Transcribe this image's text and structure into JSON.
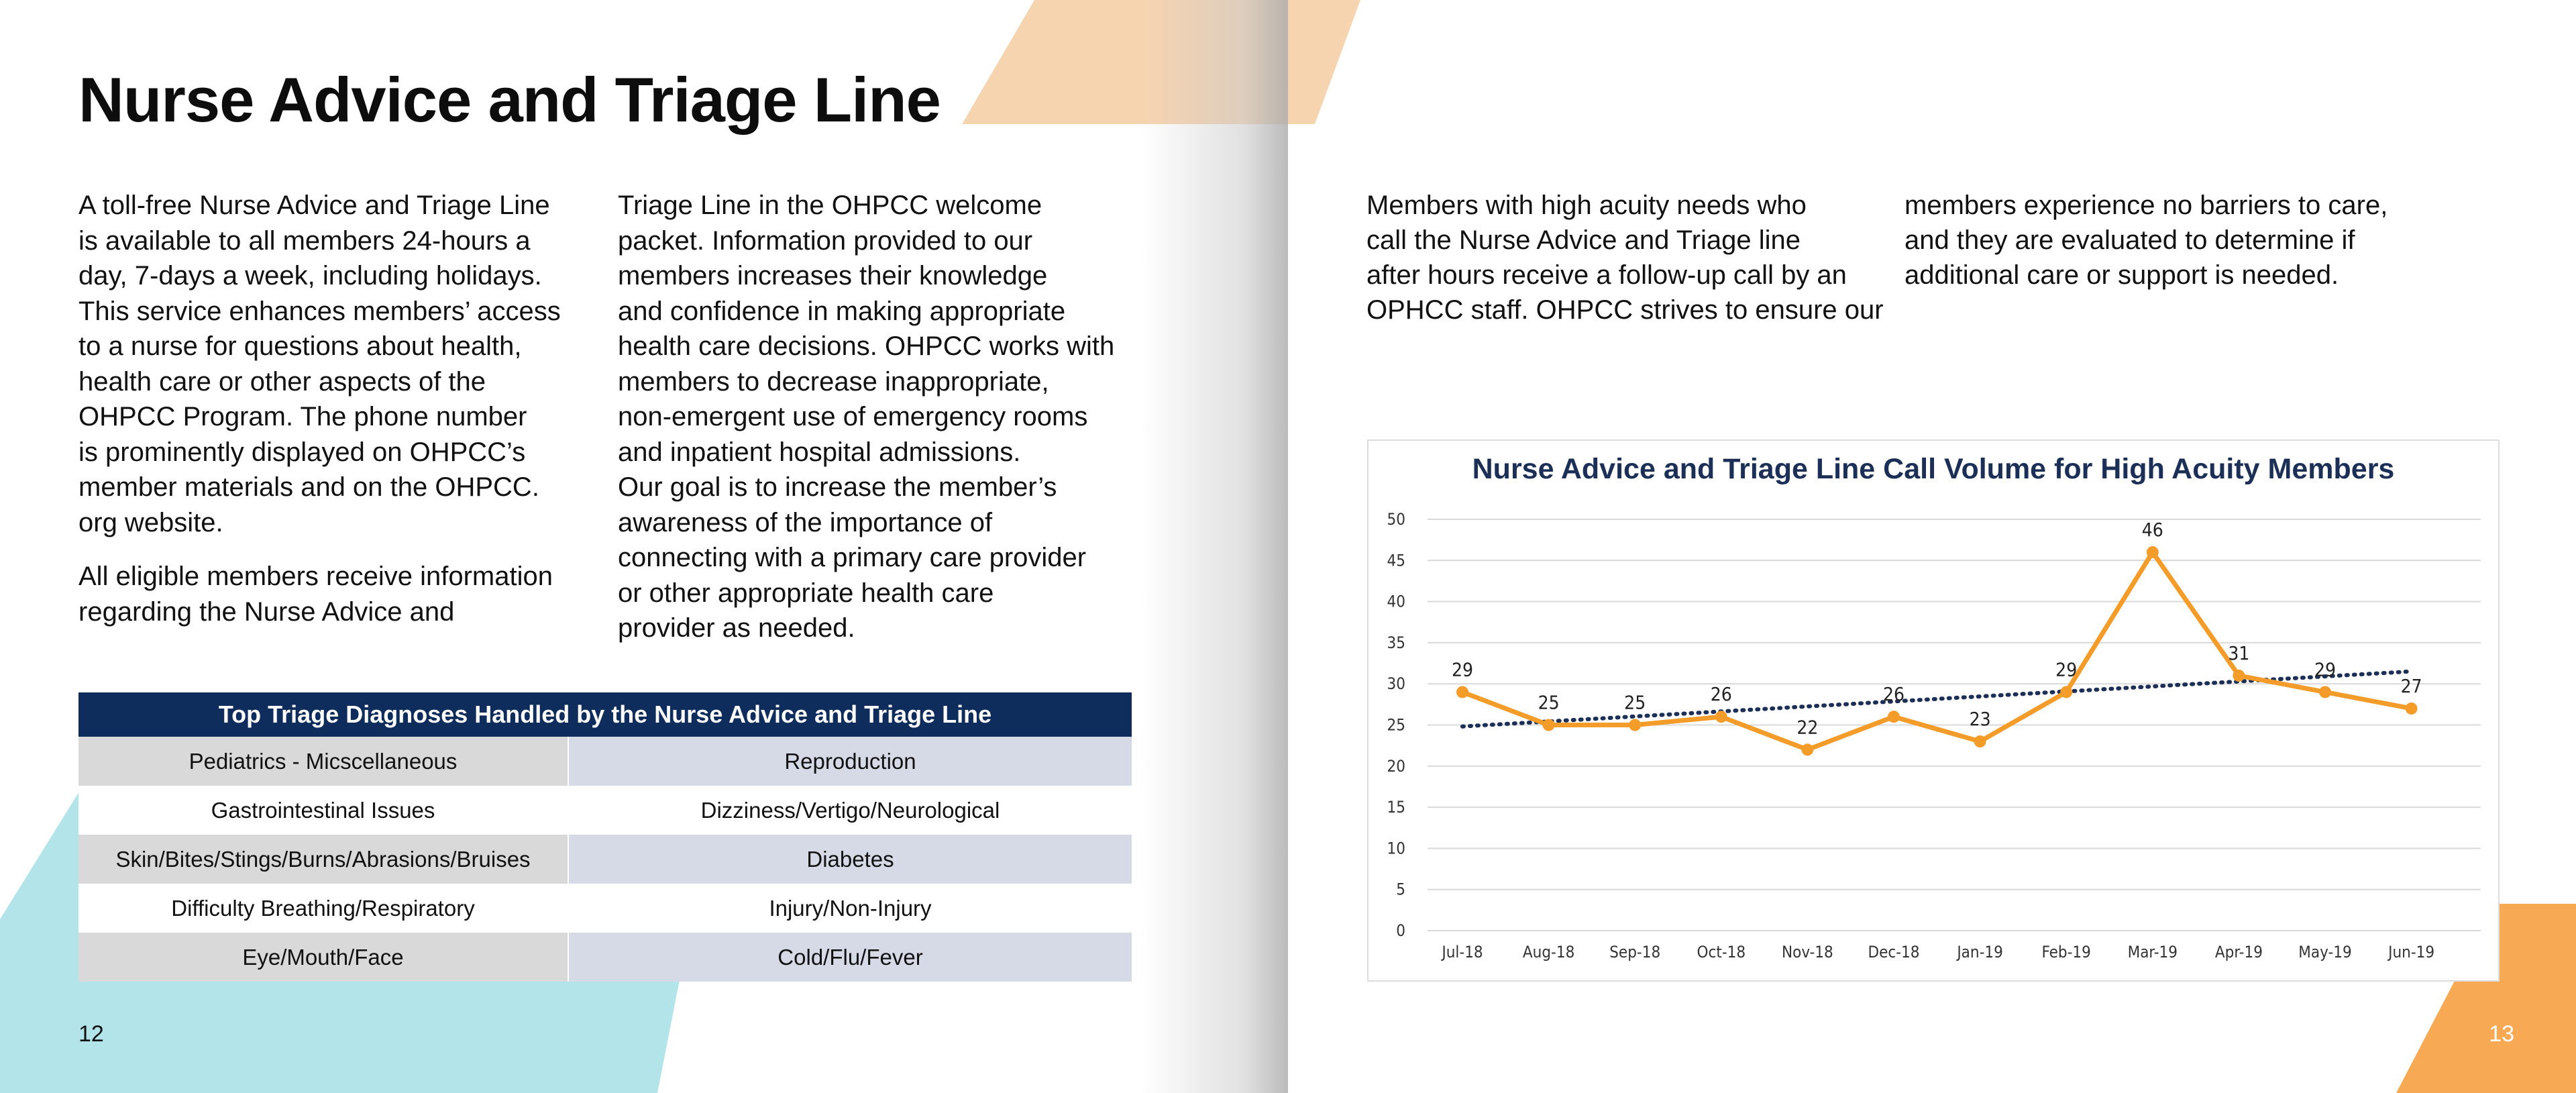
{
  "left_page": {
    "title": "Nurse Advice and Triage Line",
    "col1_para1_lines": [
      "A toll-free Nurse Advice and Triage Line",
      "is available to all members 24-hours a",
      "day, 7-days a week, including holidays.",
      "This service enhances members’ access",
      "to a nurse for questions about health,",
      "health care or other aspects of the",
      "OHPCC Program. The phone number",
      "is prominently displayed on OHPCC’s",
      "member materials and on the OHPCC.",
      "org website."
    ],
    "col1_para2_lines": [
      "All eligible members receive information",
      "regarding the Nurse Advice and"
    ],
    "col2_lines": [
      "Triage Line in the OHPCC welcome",
      "packet.  Information provided to our",
      "members increases their knowledge",
      "and confidence in making appropriate",
      "health care decisions. OHPCC works with",
      "members to decrease inappropriate,",
      "non-emergent use of emergency rooms",
      "and inpatient hospital admissions.",
      "Our goal is to increase the member’s",
      "awareness of the importance of",
      "connecting with a primary care provider",
      "or other appropriate health care",
      "provider as needed."
    ],
    "table": {
      "header": "Top Triage Diagnoses Handled by the Nurse Advice and Triage Line",
      "rows": [
        [
          "Pediatrics - Micscellaneous",
          "Reproduction"
        ],
        [
          "Gastrointestinal Issues",
          "Dizziness/Vertigo/Neurological"
        ],
        [
          "Skin/Bites/Stings/Burns/Abrasions/Bruises",
          "Diabetes"
        ],
        [
          "Difficulty Breathing/Respiratory",
          "Injury/Non-Injury"
        ],
        [
          "Eye/Mouth/Face",
          "Cold/Flu/Fever"
        ]
      ]
    },
    "page_number": "12"
  },
  "right_page": {
    "col1_lines": [
      "Members with high acuity needs who",
      "call the Nurse Advice and Triage line",
      "after hours receive a follow-up call by an",
      "OPHCC staff. OHPCC strives to ensure our"
    ],
    "col2_lines": [
      "members experience no barriers to care,",
      "and they are evaluated to determine if",
      "additional care or support is needed."
    ],
    "page_number": "13"
  },
  "colors": {
    "navy": "#0f2d5c",
    "chart_title": "#1b2f57",
    "orange_line": "#f39c2a",
    "peach_shape": "#f7d4b0",
    "orange_shape": "#f7a954",
    "cyan_shape": "#b3e4ea",
    "trend_line": "#1b2f57"
  },
  "chart_data": {
    "type": "line",
    "title": "Nurse Advice and Triage Line Call Volume for High Acuity Members",
    "categories": [
      "Jul-18",
      "Aug-18",
      "Sep-18",
      "Oct-18",
      "Nov-18",
      "Dec-18",
      "Jan-19",
      "Feb-19",
      "Mar-19",
      "Apr-19",
      "May-19",
      "Jun-19"
    ],
    "series": [
      {
        "values": [
          29,
          25,
          25,
          26,
          22,
          26,
          23,
          29,
          46,
          31,
          29,
          27
        ],
        "color": "#f39c2a",
        "data_labels": true
      }
    ],
    "trendline": {
      "type": "linear",
      "style": "dotted",
      "color": "#1b2f57"
    },
    "ylim": [
      0,
      50
    ],
    "yticks": [
      0,
      5,
      10,
      15,
      20,
      25,
      30,
      35,
      40,
      45,
      50
    ],
    "grid": true,
    "legend": "none",
    "xlabel": "",
    "ylabel": ""
  }
}
